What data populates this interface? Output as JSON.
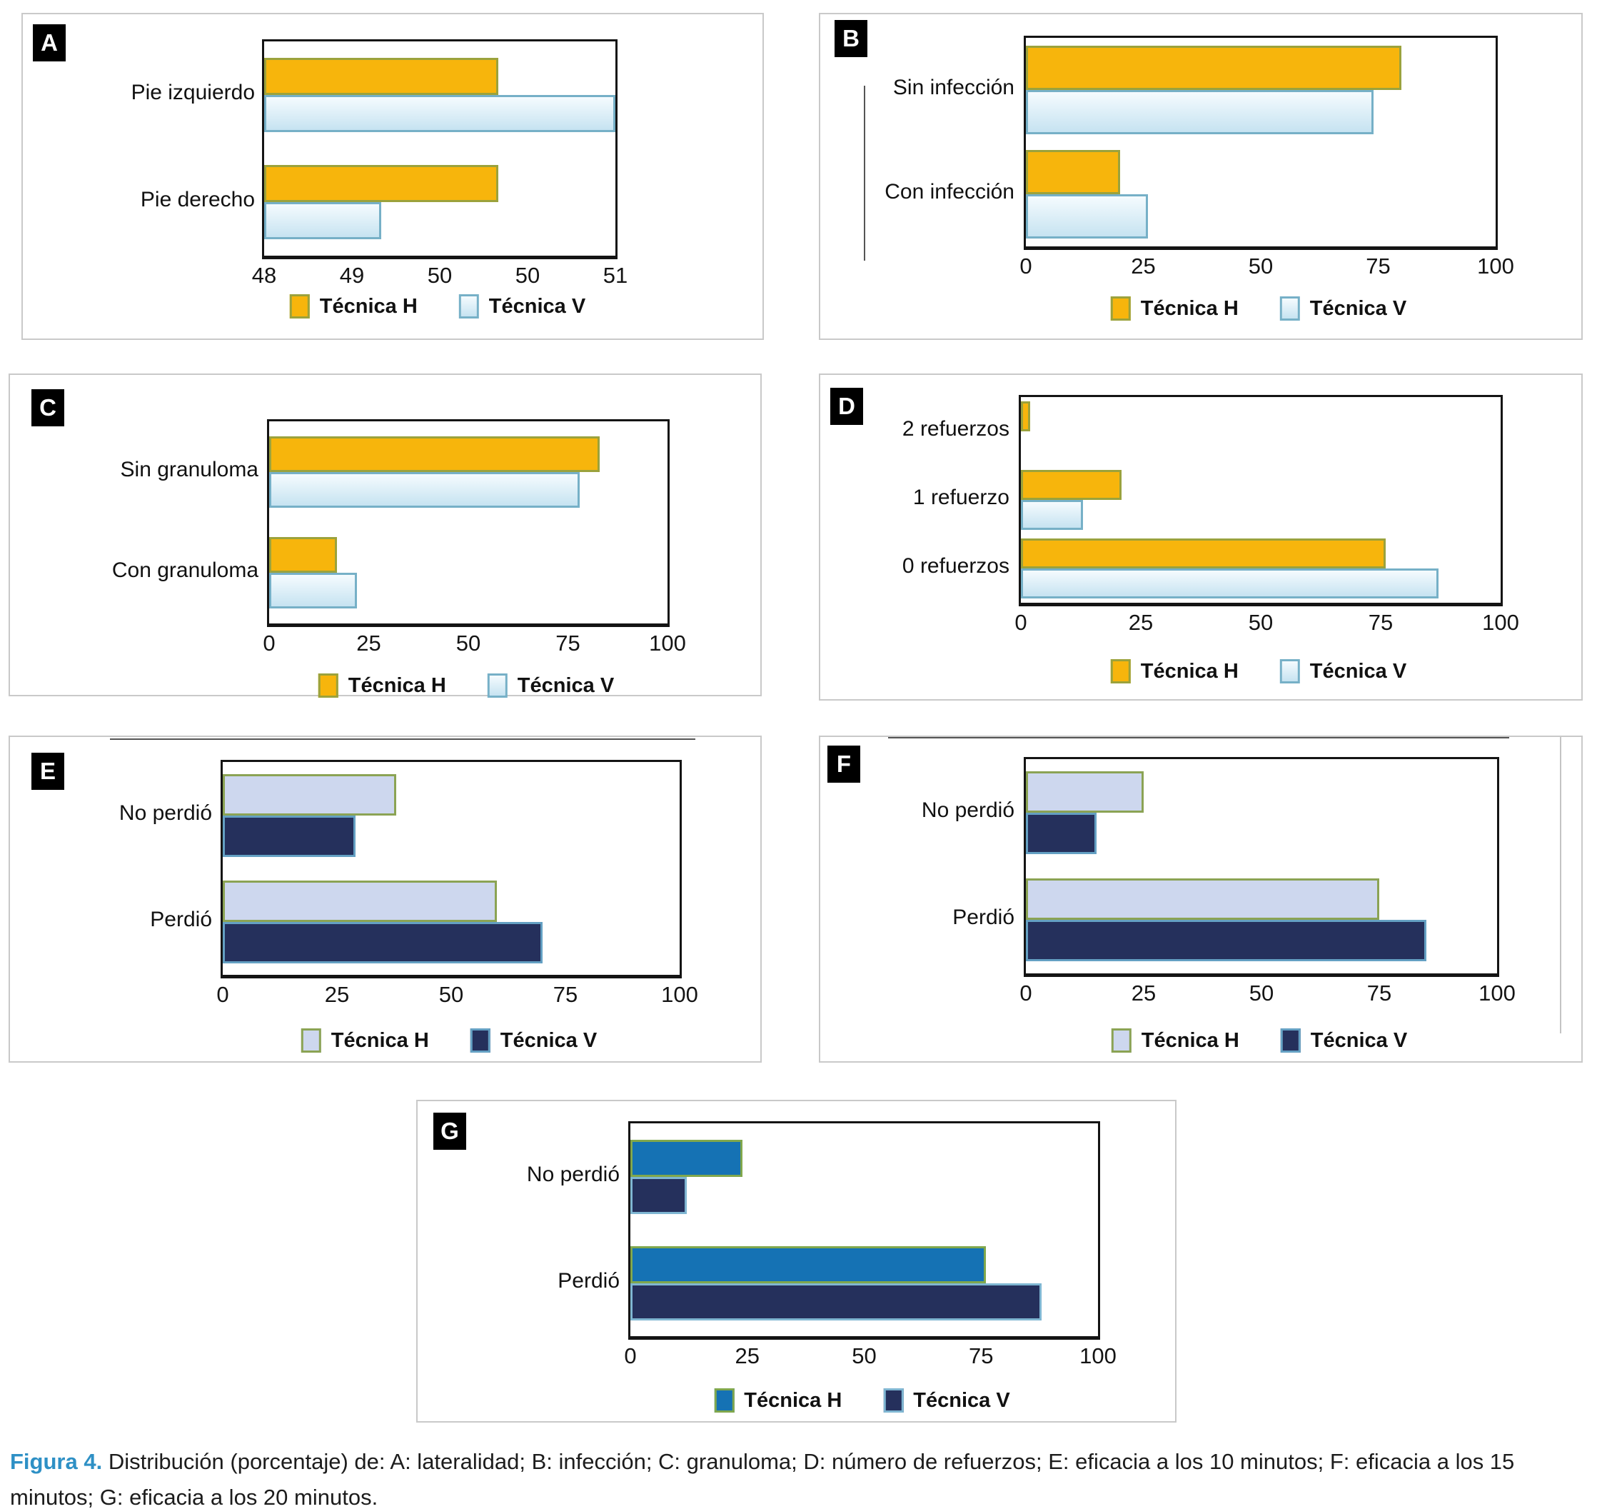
{
  "figure": {
    "caption_label": "Figura 4.",
    "caption_text": " Distribución (porcentaje) de: A: lateralidad; B: infección; C: granuloma; D: número de refuerzos; E: eficacia a los 10 minutos; F: eficacia a los 15 minutos; G: eficacia a los 20 minutos.",
    "caption_label_color": "#2e90c5"
  },
  "legend": {
    "h_label": "Técnica H",
    "v_label": "Técnica V"
  },
  "palettes": {
    "yellow_blue": {
      "h_fill": "#F7B50C",
      "h_border": "#9BA23C",
      "v_fill_top": "#F5FBFE",
      "v_fill_bottom": "#C6E3F1",
      "v_border": "#76B0C7"
    },
    "lavender_navy": {
      "h_fill": "#CDD7EE",
      "h_border": "#8BA354",
      "v_fill": "#25305C",
      "v_border": "#64A0C3"
    },
    "blue_navy": {
      "h_fill": "#1572B4",
      "h_border": "#80A74D",
      "v_fill": "#25305C",
      "v_border": "#7FB6D2"
    }
  },
  "chart_data": [
    {
      "id": "A",
      "letter": "A",
      "type": "bar",
      "orientation": "horizontal",
      "title": "Lateralidad",
      "categories": [
        "Pie izquierdo",
        "Pie derecho"
      ],
      "series": [
        {
          "name": "Técnica H",
          "values": [
            50,
            50
          ]
        },
        {
          "name": "Técnica V",
          "values": [
            51,
            49
          ]
        }
      ],
      "xlim": [
        48,
        51
      ],
      "tick_labels": [
        "48",
        "49",
        "50",
        "50",
        "51"
      ],
      "grid": false,
      "legend_position": "bottom",
      "palette": "yellow_blue"
    },
    {
      "id": "B",
      "letter": "B",
      "type": "bar",
      "orientation": "horizontal",
      "title": "Infección",
      "categories": [
        "Sin infección",
        "Con infección"
      ],
      "series": [
        {
          "name": "Técnica H",
          "values": [
            80,
            20
          ]
        },
        {
          "name": "Técnica V",
          "values": [
            74,
            26
          ]
        }
      ],
      "xlim": [
        0,
        100
      ],
      "tick_labels": [
        "0",
        "25",
        "50",
        "75",
        "100"
      ],
      "grid": false,
      "legend_position": "bottom",
      "palette": "yellow_blue"
    },
    {
      "id": "C",
      "letter": "C",
      "type": "bar",
      "orientation": "horizontal",
      "title": "Granuloma",
      "categories": [
        "Sin granuloma",
        "Con granuloma"
      ],
      "series": [
        {
          "name": "Técnica H",
          "values": [
            83,
            17
          ]
        },
        {
          "name": "Técnica V",
          "values": [
            78,
            22
          ]
        }
      ],
      "xlim": [
        0,
        100
      ],
      "tick_labels": [
        "0",
        "25",
        "50",
        "75",
        "100"
      ],
      "grid": false,
      "legend_position": "bottom",
      "palette": "yellow_blue"
    },
    {
      "id": "D",
      "letter": "D",
      "type": "bar",
      "orientation": "horizontal",
      "title": "Número de refuerzos",
      "categories": [
        "2 refuerzos",
        "1 refuerzo",
        "0 refuerzos"
      ],
      "series": [
        {
          "name": "Técnica H",
          "values": [
            2,
            21,
            76
          ]
        },
        {
          "name": "Técnica V",
          "values": [
            0,
            13,
            87
          ]
        }
      ],
      "xlim": [
        0,
        100
      ],
      "tick_labels": [
        "0",
        "25",
        "50",
        "75",
        "100"
      ],
      "grid": false,
      "legend_position": "bottom",
      "palette": "yellow_blue"
    },
    {
      "id": "E",
      "letter": "E",
      "type": "bar",
      "orientation": "horizontal",
      "title": "Eficacia a los 10 minutos",
      "categories": [
        "No perdió",
        "Perdió"
      ],
      "series": [
        {
          "name": "Técnica H",
          "values": [
            38,
            60
          ]
        },
        {
          "name": "Técnica V",
          "values": [
            29,
            70
          ]
        }
      ],
      "xlim": [
        0,
        100
      ],
      "tick_labels": [
        "0",
        "25",
        "50",
        "75",
        "100"
      ],
      "grid": false,
      "legend_position": "bottom",
      "palette": "lavender_navy"
    },
    {
      "id": "F",
      "letter": "F",
      "type": "bar",
      "orientation": "horizontal",
      "title": "Eficacia a los 15 minutos",
      "categories": [
        "No perdió",
        "Perdió"
      ],
      "series": [
        {
          "name": "Técnica H",
          "values": [
            25,
            75
          ]
        },
        {
          "name": "Técnica V",
          "values": [
            15,
            85
          ]
        }
      ],
      "xlim": [
        0,
        100
      ],
      "tick_labels": [
        "0",
        "25",
        "50",
        "75",
        "100"
      ],
      "grid": false,
      "legend_position": "bottom",
      "palette": "lavender_navy"
    },
    {
      "id": "G",
      "letter": "G",
      "type": "bar",
      "orientation": "horizontal",
      "title": "Eficacia a los 20 minutos",
      "categories": [
        "No perdió",
        "Perdió"
      ],
      "series": [
        {
          "name": "Técnica H",
          "values": [
            24,
            76
          ]
        },
        {
          "name": "Técnica V",
          "values": [
            12,
            88
          ]
        }
      ],
      "xlim": [
        0,
        100
      ],
      "tick_labels": [
        "0",
        "25",
        "50",
        "75",
        "100"
      ],
      "grid": false,
      "legend_position": "bottom",
      "palette": "blue_navy"
    }
  ]
}
